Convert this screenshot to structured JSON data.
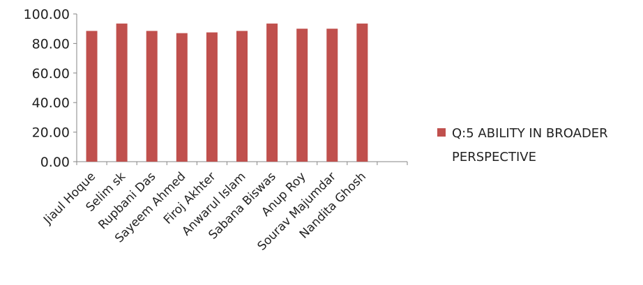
{
  "chart_data": {
    "type": "bar",
    "categories": [
      "Jiaul Hoque",
      "Selim sk",
      "Rupbani Das",
      "Sayeem Ahmed",
      "Firoj Akhter",
      "Anwarul Islam",
      "Sabana Biswas",
      "Anup Roy",
      "Sourav Majumdar",
      "Nandita Ghosh"
    ],
    "series": [
      {
        "name": "Q:5 ABILITY IN  BROADER PERSPECTIVE",
        "values": [
          88.5,
          93.5,
          88.5,
          87.0,
          87.5,
          88.5,
          93.5,
          90.0,
          90.0,
          93.5
        ],
        "color": "#C0504D"
      }
    ],
    "ylim": [
      0,
      100
    ],
    "yticks": [
      "0.00",
      "20.00",
      "40.00",
      "60.00",
      "80.00",
      "100.00"
    ],
    "grid": false,
    "legend": {
      "position": "right",
      "label_lines": [
        "Q:5 ABILITY IN  BROADER",
        "PERSPECTIVE"
      ]
    },
    "title": "",
    "xlabel": "",
    "ylabel": ""
  }
}
